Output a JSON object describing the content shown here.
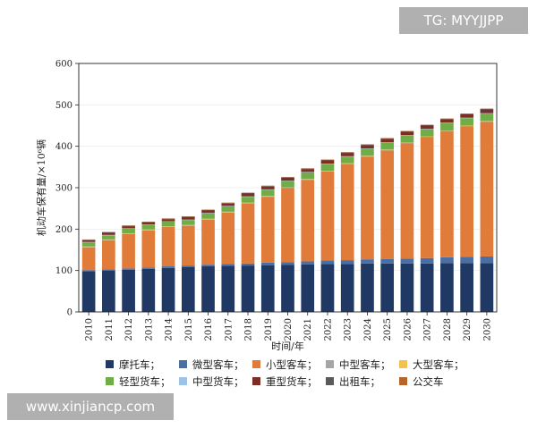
{
  "watermarks": {
    "top": "TG: MYYJJPP",
    "bottom": "www.xinjiancp.com"
  },
  "chart_data": {
    "type": "bar",
    "stacked": true,
    "title": "",
    "xlabel": "时间/年",
    "ylabel": "机动车保有量/×10⁶辆",
    "ylim": [
      0,
      600
    ],
    "yticks": [
      0,
      100,
      200,
      300,
      400,
      500,
      600
    ],
    "categories": [
      "2010",
      "2011",
      "2012",
      "2013",
      "2014",
      "2015",
      "2016",
      "2017",
      "2018",
      "2019",
      "2020",
      "2021",
      "2022",
      "2023",
      "2024",
      "2025",
      "2026",
      "2027",
      "2028",
      "2029",
      "2030"
    ],
    "legend_position": "bottom",
    "series": [
      {
        "name": "摩托车；",
        "color": "#1f3864",
        "values": [
          98,
          100,
          102,
          104,
          106,
          108,
          110,
          111,
          112,
          113,
          114,
          115,
          116,
          116,
          117,
          117,
          117,
          117,
          118,
          118,
          118
        ]
      },
      {
        "name": "微型客车；",
        "color": "#4a6fa5",
        "values": [
          3,
          3,
          3,
          3,
          4,
          4,
          4,
          5,
          5,
          6,
          6,
          7,
          8,
          9,
          10,
          11,
          12,
          13,
          14,
          15,
          16
        ]
      },
      {
        "name": "小型客车；",
        "color": "#e07b39",
        "values": [
          55,
          70,
          83,
          90,
          95,
          96,
          109,
          124,
          145,
          159,
          179,
          197,
          215,
          232,
          248,
          262,
          278,
          292,
          304,
          315,
          325
        ]
      },
      {
        "name": "中型客车；",
        "color": "#a5a5a5",
        "values": [
          1,
          1,
          1,
          1,
          1,
          1,
          1,
          1,
          1,
          1,
          1,
          1,
          1,
          1,
          1,
          1,
          1,
          1,
          1,
          1,
          1
        ]
      },
      {
        "name": "大型客车；",
        "color": "#f2c14e",
        "values": [
          1,
          1,
          1,
          1,
          1,
          1,
          1,
          1,
          1,
          1,
          1,
          1,
          1,
          1,
          1,
          1,
          1,
          1,
          1,
          1,
          1
        ]
      },
      {
        "name": "轻型货车；",
        "color": "#70ad47",
        "values": [
          10,
          10,
          11,
          11,
          11,
          12,
          13,
          13,
          14,
          15,
          15,
          16,
          16,
          16,
          17,
          17,
          17,
          17,
          18,
          18,
          18
        ]
      },
      {
        "name": "中型货车；",
        "color": "#9dc3e6",
        "values": [
          1,
          1,
          1,
          1,
          1,
          1,
          1,
          1,
          1,
          1,
          1,
          1,
          1,
          1,
          1,
          1,
          1,
          1,
          1,
          1,
          1
        ]
      },
      {
        "name": "重型货车；",
        "color": "#7b2d26",
        "values": [
          4,
          5,
          5,
          5,
          5,
          6,
          6,
          6,
          7,
          7,
          7,
          7,
          8,
          8,
          8,
          8,
          8,
          8,
          8,
          8,
          9
        ]
      },
      {
        "name": "出租车；",
        "color": "#5a5a5a",
        "values": [
          1,
          1,
          1,
          1,
          1,
          1,
          1,
          1,
          1,
          1,
          1,
          1,
          1,
          1,
          1,
          1,
          1,
          1,
          1,
          1,
          1
        ]
      },
      {
        "name": "公交车",
        "color": "#b5652b",
        "values": [
          1,
          1,
          1,
          1,
          1,
          1,
          1,
          1,
          1,
          1,
          1,
          1,
          1,
          1,
          1,
          1,
          1,
          1,
          1,
          1,
          1
        ]
      }
    ]
  }
}
